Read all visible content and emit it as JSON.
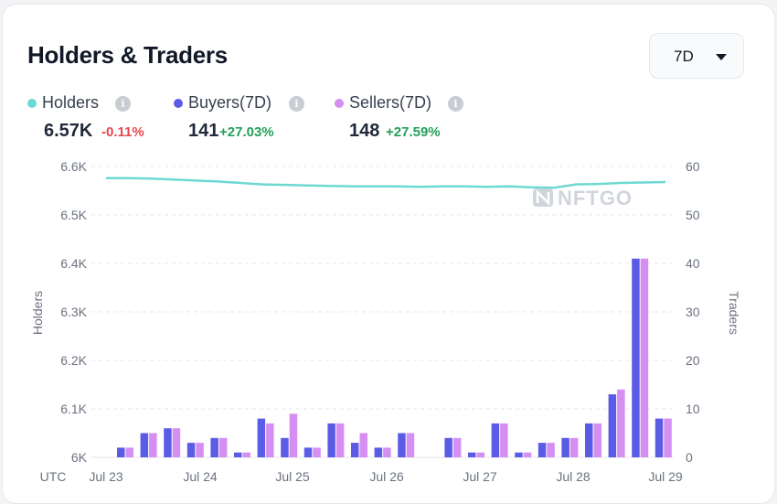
{
  "header": {
    "title": "Holders & Traders"
  },
  "period_select": {
    "value": "7D"
  },
  "stats": [
    {
      "label": "Holders",
      "color": "#6ed8d2",
      "value": "6.57K",
      "change": "-0.11%",
      "change_color": "#e5484d"
    },
    {
      "label": "Buyers(7D)",
      "color": "#5b5ce6",
      "value": "141",
      "change": "+27.03%",
      "change_color": "#22a05a"
    },
    {
      "label": "Sellers(7D)",
      "color": "#d58ef2",
      "value": "148",
      "change": "+27.59%",
      "change_color": "#22a05a"
    }
  ],
  "info_icon": "i",
  "watermark": "NFTGO",
  "chart_data": {
    "type": "bar",
    "x_tick_labels": [
      "UTC",
      "Jul 23",
      "Jul 24",
      "Jul 25",
      "Jul 26",
      "Jul 27",
      "Jul 28",
      "Jul 29"
    ],
    "left_axis": {
      "label": "Holders",
      "ylim": [
        6000,
        6600
      ],
      "ticks": [
        "6K",
        "6.1K",
        "6.2K",
        "6.3K",
        "6.4K",
        "6.5K",
        "6.6K"
      ]
    },
    "right_axis": {
      "label": "Traders",
      "ylim": [
        0,
        60
      ],
      "ticks": [
        "0",
        "10",
        "20",
        "30",
        "40",
        "50",
        "60"
      ]
    },
    "grid": true,
    "series": [
      {
        "name": "Buyers(7D)",
        "kind": "bar",
        "axis": "right",
        "color": "#5b5ce6",
        "values": [
          2,
          5,
          6,
          3,
          4,
          1,
          8,
          4,
          2,
          7,
          3,
          2,
          5,
          0,
          4,
          1,
          7,
          1,
          3,
          4,
          7,
          13,
          41,
          8
        ]
      },
      {
        "name": "Sellers(7D)",
        "kind": "bar",
        "axis": "right",
        "color": "#d58ef2",
        "values": [
          2,
          5,
          6,
          3,
          4,
          1,
          7,
          9,
          2,
          7,
          5,
          2,
          5,
          0,
          4,
          1,
          7,
          1,
          3,
          4,
          7,
          14,
          41,
          8
        ]
      },
      {
        "name": "Holders",
        "kind": "line",
        "axis": "left",
        "color": "#6ed8d2",
        "values": [
          6576,
          6576,
          6575,
          6573,
          6571,
          6569,
          6566,
          6563,
          6562,
          6561,
          6560,
          6559,
          6559,
          6559,
          6558,
          6559,
          6559,
          6558,
          6559,
          6557,
          6556,
          6563,
          6564,
          6566,
          6567,
          6568
        ]
      }
    ]
  }
}
